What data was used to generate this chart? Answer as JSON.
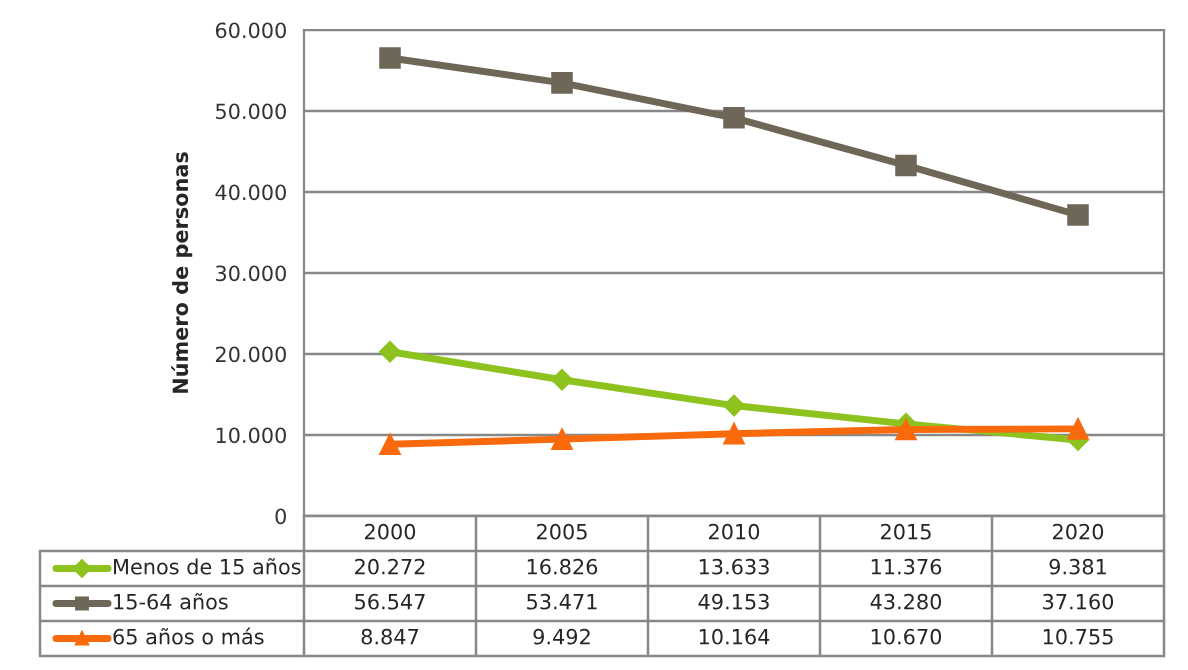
{
  "chart_data": {
    "type": "line",
    "ylabel": "Número de personas",
    "categories": [
      "2000",
      "2005",
      "2010",
      "2015",
      "2020"
    ],
    "series": [
      {
        "name": "Menos de 15 años",
        "color": "#8dc21f",
        "marker": "diamond",
        "values": [
          20272,
          16826,
          13633,
          11376,
          9381
        ],
        "value_labels": [
          "20.272",
          "16.826",
          "13.633",
          "11.376",
          "9.381"
        ]
      },
      {
        "name": "15-64 años",
        "color": "#6e6656",
        "marker": "square",
        "values": [
          56547,
          53471,
          49153,
          43280,
          37160
        ],
        "value_labels": [
          "56.547",
          "53.471",
          "49.153",
          "43.280",
          "37.160"
        ]
      },
      {
        "name": "65 años o más",
        "color": "#f96a0c",
        "marker": "triangle",
        "values": [
          8847,
          9492,
          10164,
          10670,
          10755
        ],
        "value_labels": [
          "8.847",
          "9.492",
          "10.164",
          "10.670",
          "10.755"
        ]
      }
    ],
    "ylim": [
      0,
      60000
    ],
    "yticks": [
      {
        "value": 0,
        "label": "0"
      },
      {
        "value": 10000,
        "label": "10.000"
      },
      {
        "value": 20000,
        "label": "20.000"
      },
      {
        "value": 30000,
        "label": "30.000"
      },
      {
        "value": 40000,
        "label": "40.000"
      },
      {
        "value": 50000,
        "label": "50.000"
      },
      {
        "value": 60000,
        "label": "60.000"
      }
    ],
    "grid": "y",
    "legend": "bottom",
    "line_style": "solid"
  }
}
